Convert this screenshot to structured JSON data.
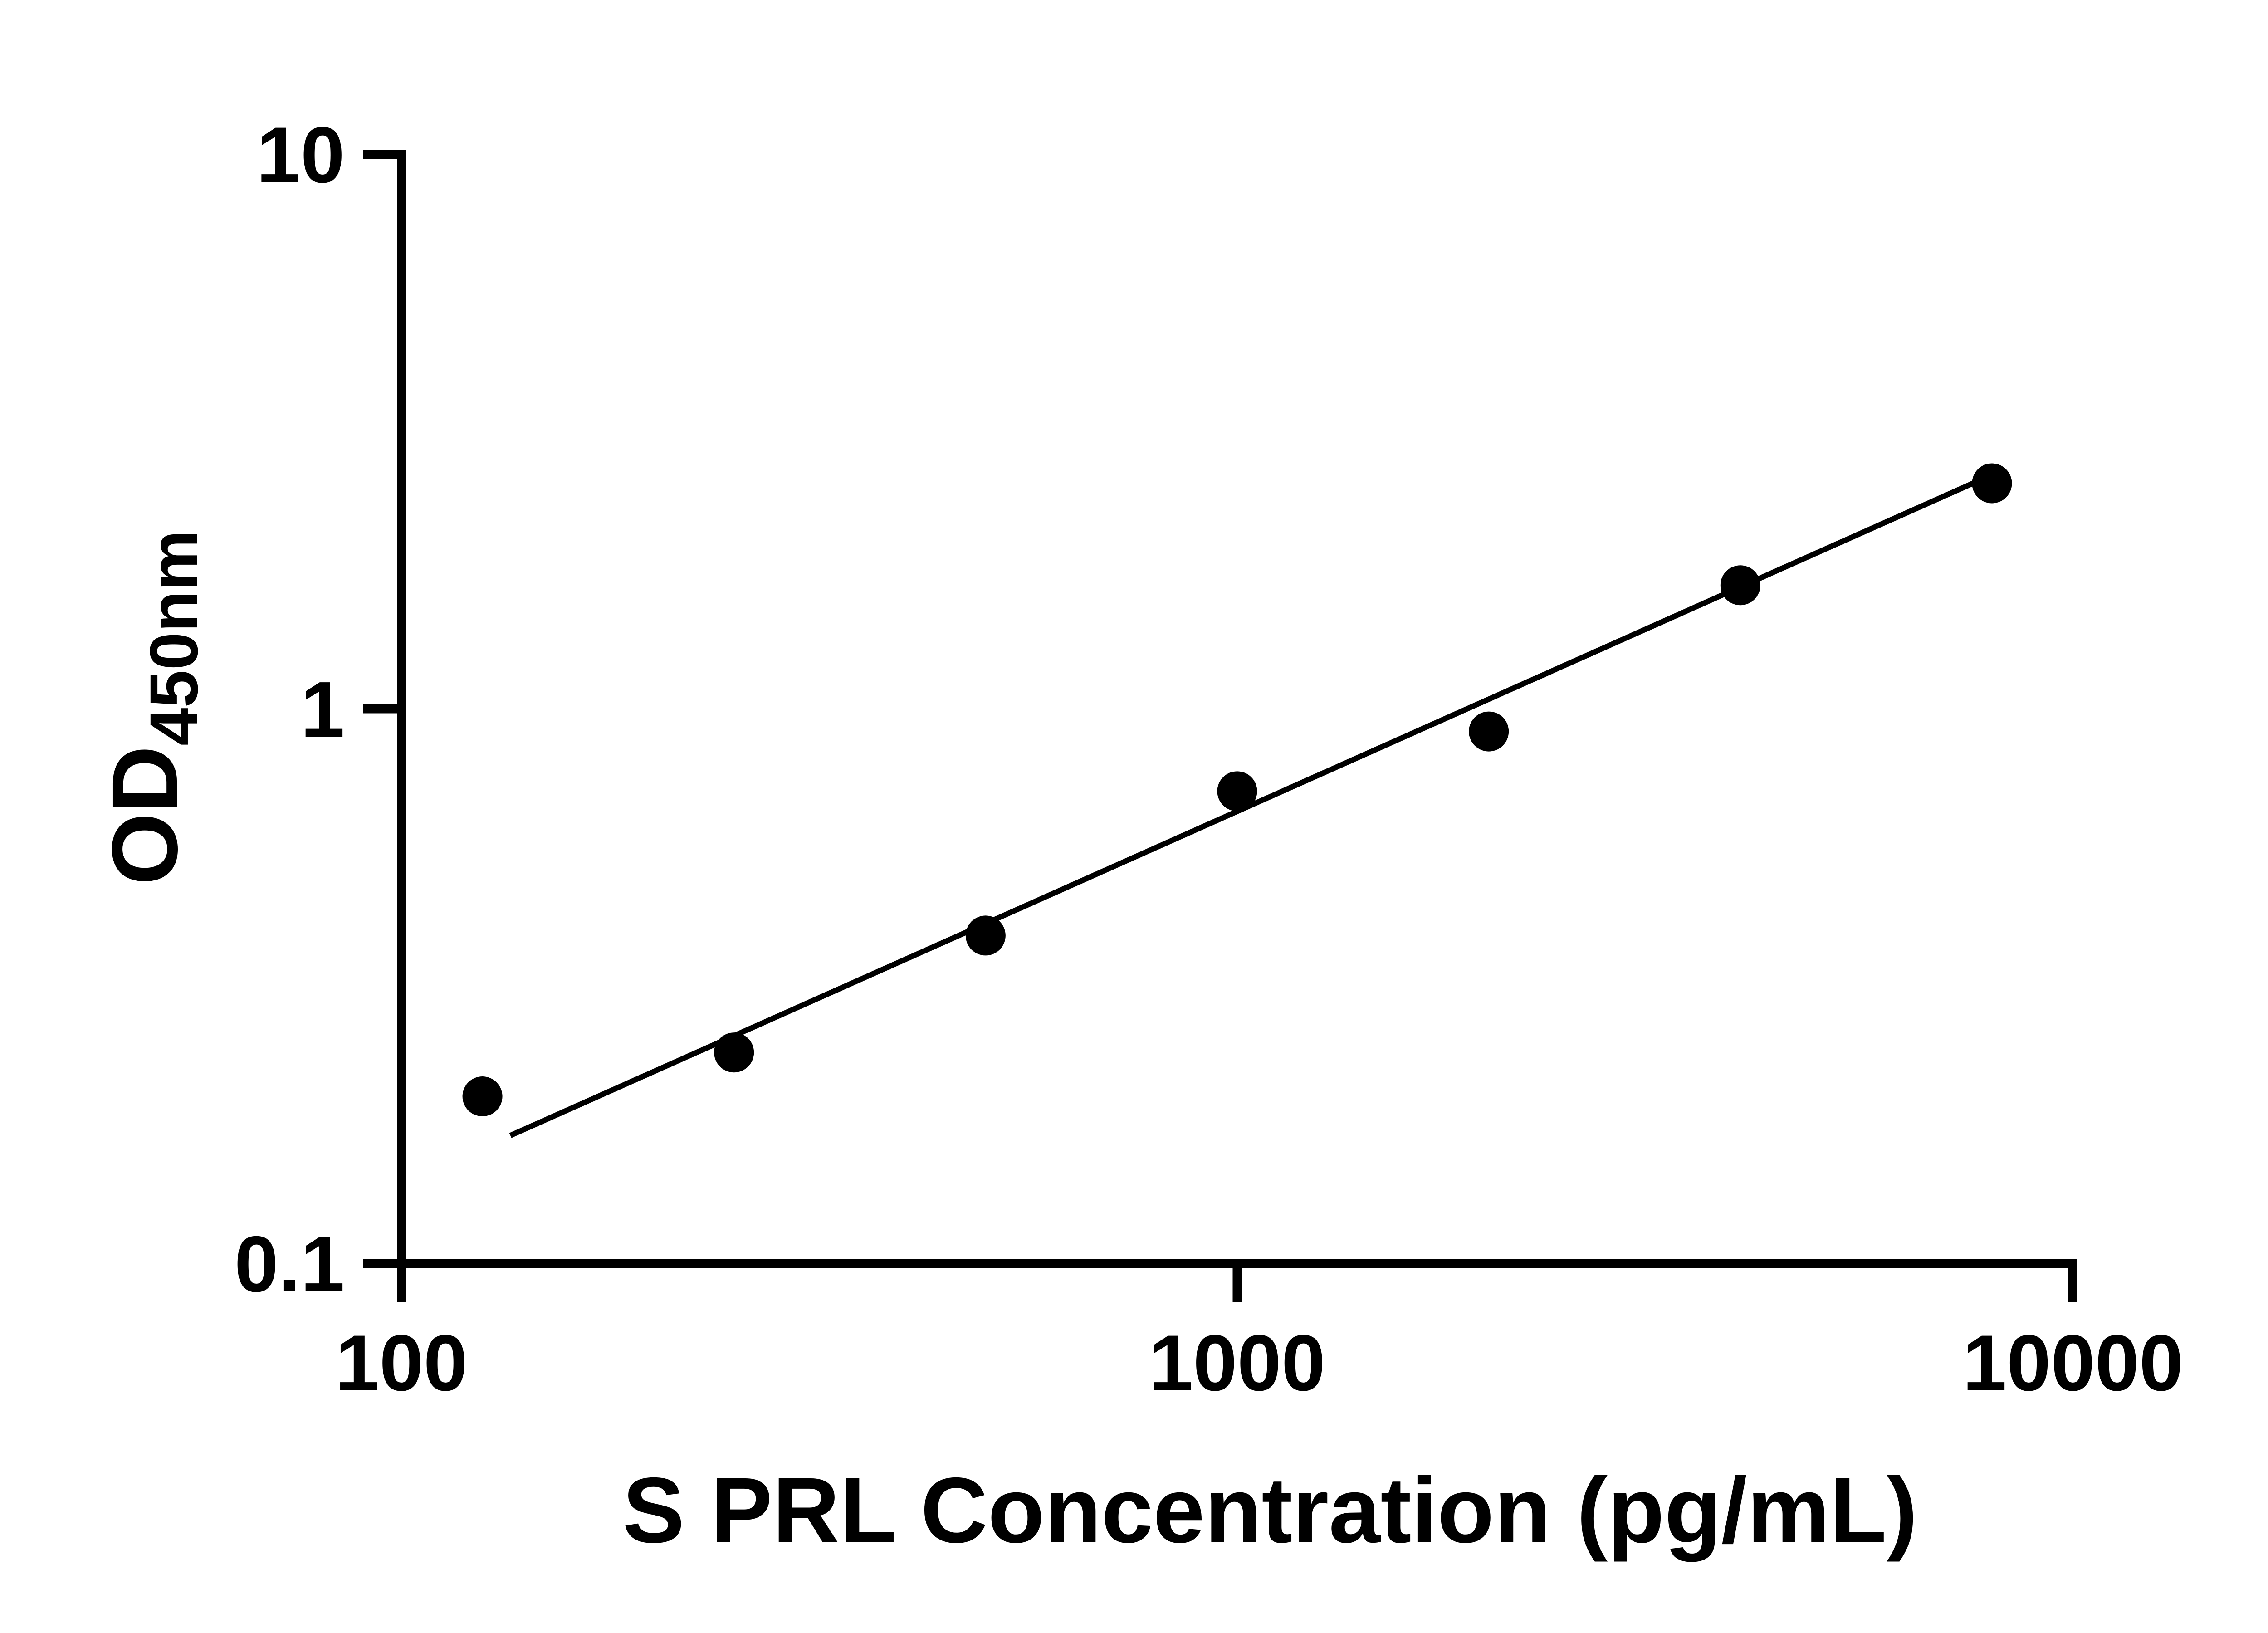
{
  "chart_data": {
    "type": "scatter",
    "title": "",
    "xlabel": "S PRL Concentration (pg/mL)",
    "ylabel_main": "OD",
    "ylabel_sub": "450nm",
    "x_scale": "log",
    "y_scale": "log",
    "xlim": [
      100,
      10000
    ],
    "ylim": [
      0.1,
      10
    ],
    "grid": false,
    "legend": "none",
    "background": "#ffffff",
    "axis_color": "#000000",
    "marker_color": "#000000",
    "line_color": "#000000",
    "x_ticks": [
      {
        "value": 100,
        "label": "100"
      },
      {
        "value": 1000,
        "label": "1000"
      },
      {
        "value": 10000,
        "label": "10000"
      }
    ],
    "y_ticks": [
      {
        "value": 0.1,
        "label": "0.1"
      },
      {
        "value": 1,
        "label": "1"
      },
      {
        "value": 10,
        "label": "10"
      }
    ],
    "points": [
      {
        "x": 125,
        "y": 0.2
      },
      {
        "x": 250,
        "y": 0.24
      },
      {
        "x": 500,
        "y": 0.39
      },
      {
        "x": 1000,
        "y": 0.71
      },
      {
        "x": 2000,
        "y": 0.91
      },
      {
        "x": 4000,
        "y": 1.67
      },
      {
        "x": 8000,
        "y": 2.55
      }
    ],
    "trend_line": {
      "x1": 135,
      "y1": 0.17,
      "x2": 7900,
      "y2": 2.62
    }
  }
}
